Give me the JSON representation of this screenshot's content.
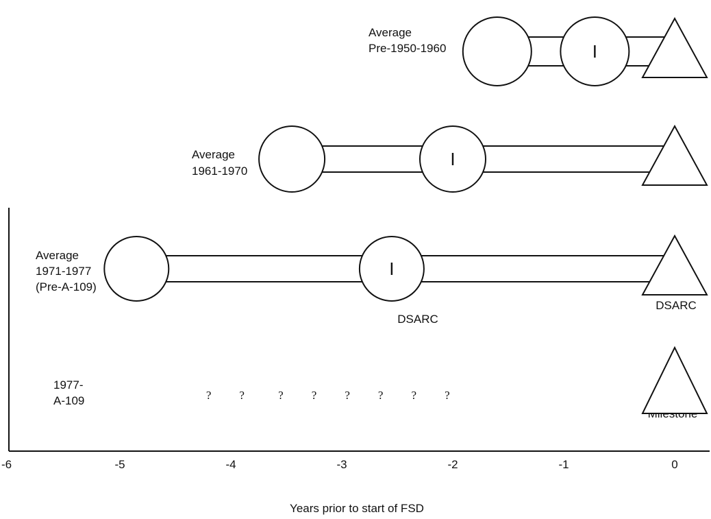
{
  "rows": [
    {
      "label": [
        "Average",
        "Pre-1950-1960"
      ],
      "start_circle_year": -1.6,
      "mid_circle_year": -0.72,
      "mid_mark": "I",
      "end_triangle_year": 0
    },
    {
      "label": [
        "Average",
        "1961-1970"
      ],
      "start_circle_year": -3.45,
      "mid_circle_year": -2.0,
      "mid_mark": "I",
      "end_triangle_year": 0
    },
    {
      "label": [
        "Average",
        "1971-1977",
        "(Pre-A-109)"
      ],
      "start_circle_year": -4.85,
      "mid_circle_year": -2.55,
      "mid_mark": "I",
      "mid_caption": "DSARC",
      "end_triangle_year": 0,
      "end_caption": "DSARC"
    },
    {
      "label": [
        "1977-",
        "A-109"
      ],
      "unknown_years": [
        -4.2,
        -3.9,
        -3.55,
        -3.25,
        -2.95,
        -2.65,
        -2.35,
        -2.05
      ],
      "unknown_mark": "?",
      "end_triangle_year": 0,
      "end_caption": "Milestone"
    }
  ],
  "axis": {
    "title": "Years prior to start of FSD",
    "ticks": [
      {
        "value": -6,
        "label": "-6"
      },
      {
        "value": -5,
        "label": "-5"
      },
      {
        "value": -4,
        "label": "-4"
      },
      {
        "value": -3,
        "label": "-3"
      },
      {
        "value": -2,
        "label": "-2"
      },
      {
        "value": -1,
        "label": "-1"
      },
      {
        "value": 0,
        "label": "0"
      }
    ]
  }
}
